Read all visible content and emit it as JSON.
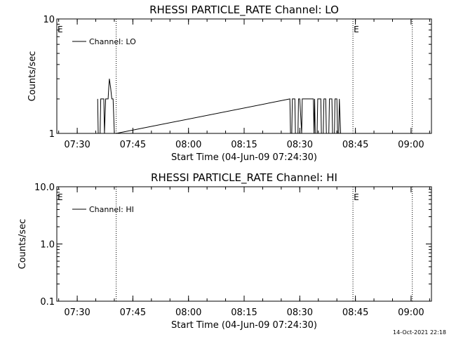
{
  "footer": {
    "timestamp": "14-Oct-2021 22:18"
  },
  "chart_data": [
    {
      "type": "line",
      "title": "RHESSI PARTICLE_RATE Channel: LO",
      "xlabel": "Start Time (04-Jun-09 07:24:30)",
      "ylabel": "Counts/sec",
      "y_scale": "log",
      "xlim": [
        "07:24:30",
        "09:05:30"
      ],
      "ylim": [
        1,
        10
      ],
      "x_ticks": [
        "07:30",
        "07:45",
        "08:00",
        "08:15",
        "08:30",
        "08:45",
        "09:00"
      ],
      "y_ticks": [
        "1",
        "10"
      ],
      "legend": {
        "entries": [
          "Channel: LO"
        ],
        "placement": "top-left"
      },
      "markers": {
        "label": "E",
        "times": [
          "07:24:30",
          "08:44:20"
        ]
      },
      "vertical_lines": [
        "07:40:30",
        "08:44:20",
        "09:00:20"
      ],
      "series": [
        {
          "name": "Channel: LO",
          "x": [
            "07:35:30",
            "07:35:40",
            "07:36:10",
            "07:36:20",
            "07:37:10",
            "07:37:20",
            "07:37:40",
            "07:38:20",
            "07:38:30",
            "07:38:40",
            "07:39:00",
            "07:39:20",
            "07:39:40",
            "07:40:00",
            "07:40:30",
            "08:27:20",
            "08:27:30",
            "08:27:50",
            "08:28:00",
            "08:28:40",
            "08:28:50",
            "08:29:30",
            "08:29:40",
            "08:30:00",
            "08:30:30",
            "08:30:40",
            "08:31:00",
            "08:31:10",
            "08:33:40",
            "08:33:50",
            "08:34:00",
            "08:34:10",
            "08:34:40",
            "08:34:50",
            "08:35:40",
            "08:35:50",
            "08:36:20",
            "08:36:30",
            "08:37:00",
            "08:37:10",
            "08:37:50",
            "08:38:00",
            "08:38:40",
            "08:38:50",
            "08:39:20",
            "08:39:30",
            "08:40:00",
            "08:40:10",
            "08:40:30",
            "08:40:40",
            "08:41:00"
          ],
          "y": [
            2,
            1,
            1,
            2,
            2,
            1,
            2,
            2,
            2.5,
            3,
            2.5,
            2,
            2,
            1,
            1,
            2,
            1,
            1,
            2,
            2,
            1,
            1,
            2,
            2,
            1,
            2,
            2,
            2,
            2,
            1,
            2,
            1,
            1,
            2,
            2,
            1,
            1,
            2,
            2,
            1,
            1,
            2,
            2,
            1,
            1,
            2,
            2,
            1,
            1,
            2,
            1
          ]
        }
      ]
    },
    {
      "type": "line",
      "title": "RHESSI PARTICLE_RATE Channel: HI",
      "xlabel": "Start Time (04-Jun-09 07:24:30)",
      "ylabel": "Counts/sec",
      "y_scale": "log",
      "xlim": [
        "07:24:30",
        "09:05:30"
      ],
      "ylim": [
        0.1,
        10
      ],
      "x_ticks": [
        "07:30",
        "07:45",
        "08:00",
        "08:15",
        "08:30",
        "08:45",
        "09:00"
      ],
      "y_ticks": [
        "0.1",
        "1.0",
        "10.0"
      ],
      "legend": {
        "entries": [
          "Channel: HI"
        ],
        "placement": "top-left"
      },
      "markers": {
        "label": "E",
        "times": [
          "07:24:30",
          "08:44:20"
        ]
      },
      "vertical_lines": [
        "07:40:30",
        "08:44:20",
        "09:00:20"
      ],
      "series": [
        {
          "name": "Channel: HI",
          "x": [],
          "y": []
        }
      ]
    }
  ]
}
